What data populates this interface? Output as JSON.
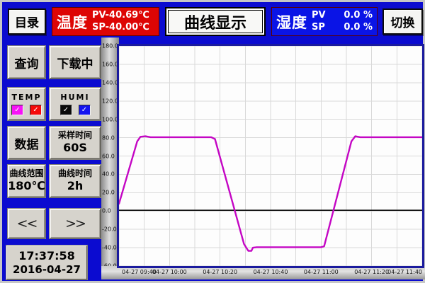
{
  "colors": {
    "background_blue": "#0b0bd0",
    "temp_red": "#dd0504",
    "humi_blue": "#0a14e6",
    "curve_magenta": "#c406c4"
  },
  "top_bar": {
    "menu_button": "目录",
    "temp_panel": {
      "label": "温度",
      "pv": "PV-40.69℃",
      "sp": "SP-40.00℃"
    },
    "title": "曲线显示",
    "humi_panel": {
      "label": "湿度",
      "pv_label": "PV",
      "pv_value": "0.0 %",
      "sp_label": "SP",
      "sp_value": "0.0 %"
    },
    "switch_button": "切换"
  },
  "sidebar": {
    "query_button": "查询",
    "download_button": "下载中",
    "temp_group": {
      "label": "TEMP",
      "pv_checkbox": {
        "color": "#f613f6",
        "glyph": "✓"
      },
      "sp_checkbox": {
        "color": "#f50a0a",
        "glyph": "✓"
      }
    },
    "humi_group": {
      "label": "HUMI",
      "pv_checkbox": {
        "color": "#0a0a0a",
        "glyph": "✓"
      },
      "sp_checkbox": {
        "color": "#1414f0",
        "glyph": "✓"
      }
    },
    "data_button": "数据",
    "sample_time": {
      "label": "采样时间",
      "value": "60S"
    },
    "curve_range": {
      "label": "曲线范围",
      "value": "180℃"
    },
    "curve_time": {
      "label": "曲线时间",
      "value": "2h"
    },
    "prev_button": "<<",
    "next_button": ">>",
    "clock": {
      "time": "17:37:58",
      "date": "2016-04-27"
    }
  },
  "chart_data": {
    "type": "line",
    "title": "",
    "xlabel": "",
    "ylabel": "",
    "ylim": [
      -60,
      180
    ],
    "ytick_step": 20,
    "xlim_minutes": [
      0,
      120
    ],
    "xgrid_step_minutes": 10,
    "grid": true,
    "ytick_labels": [
      "180.0",
      "160.0",
      "140.0",
      "120.0",
      "100.0",
      "80.0",
      "60.0",
      "40.0",
      "20.0",
      "0.0",
      "-20.0",
      "-40.0",
      "-60.0"
    ],
    "xtick_labels": [
      {
        "t": 0,
        "label": "04-27 09:40",
        "align": "left"
      },
      {
        "t": 20,
        "label": "04-27 10:00",
        "align": "center"
      },
      {
        "t": 40,
        "label": "04-27 10:20",
        "align": "center"
      },
      {
        "t": 60,
        "label": "04-27 10:40",
        "align": "center"
      },
      {
        "t": 80,
        "label": "04-27 11:00",
        "align": "center"
      },
      {
        "t": 100,
        "label": "04-27 11:20",
        "align": "center"
      },
      {
        "t": 120,
        "label": "04-27 11:40",
        "align": "right"
      }
    ],
    "series": [
      {
        "name": "temperature-pv",
        "color": "#c406c4",
        "width": 2.4,
        "points": [
          [
            0,
            8
          ],
          [
            7.2,
            76
          ],
          [
            8.5,
            81
          ],
          [
            10.5,
            81.5
          ],
          [
            12.5,
            80.5
          ],
          [
            36.5,
            80.5
          ],
          [
            38,
            78.5
          ],
          [
            49.5,
            -36
          ],
          [
            50.5,
            -40.5
          ],
          [
            51.2,
            -43.5
          ],
          [
            52.4,
            -43.5
          ],
          [
            53,
            -40
          ],
          [
            54.5,
            -39.5
          ],
          [
            80,
            -39.5
          ],
          [
            81.2,
            -38.5
          ],
          [
            92,
            76
          ],
          [
            93.5,
            81.5
          ],
          [
            95.5,
            80.5
          ],
          [
            120,
            80.5
          ]
        ]
      },
      {
        "name": "humidity-pv",
        "color": "#111111",
        "width": 1.6,
        "points": [
          [
            0,
            0.8
          ],
          [
            120,
            0.8
          ]
        ]
      }
    ]
  }
}
